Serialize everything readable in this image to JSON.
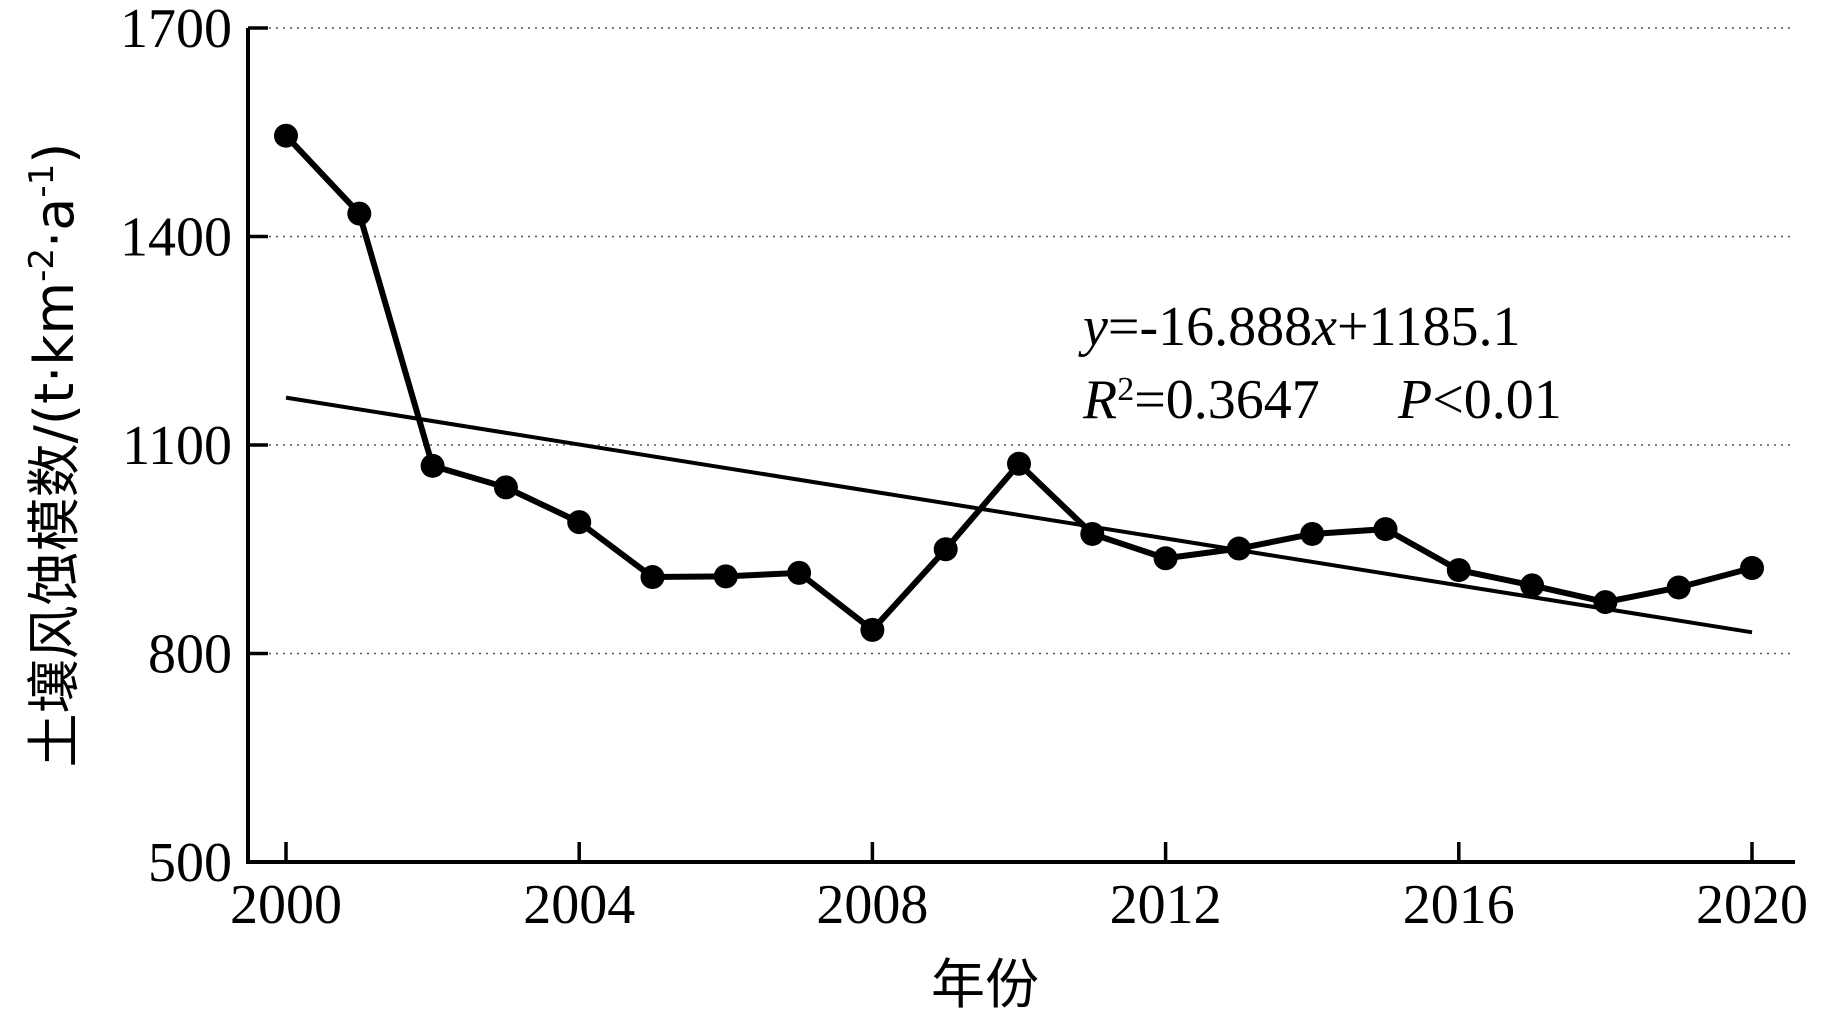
{
  "chart_data": {
    "type": "line",
    "title": "",
    "xlabel": "年份",
    "ylabel": "土壤风蚀模数/(t·km⁻²·a⁻¹)",
    "ylabel_main": "土壤风蚀模数/(t·km",
    "ylabel_sup1": "-2",
    "ylabel_mid": "·a",
    "ylabel_sup2": "-1",
    "ylabel_end": ")",
    "xlim": [
      2000,
      2020
    ],
    "ylim": [
      500,
      1700
    ],
    "x_ticks": [
      "2000",
      "2004",
      "2008",
      "2012",
      "2016",
      "2020"
    ],
    "y_ticks": [
      "500",
      "800",
      "1100",
      "1400",
      "1700"
    ],
    "grid": "horizontal-dotted",
    "x": [
      2000,
      2001,
      2002,
      2003,
      2004,
      2005,
      2006,
      2007,
      2008,
      2009,
      2010,
      2011,
      2012,
      2013,
      2014,
      2015,
      2016,
      2017,
      2018,
      2019,
      2020
    ],
    "series": [
      {
        "values": [
          1545,
          1433,
          1070,
          1039,
          989,
          910,
          911,
          916,
          834,
          950,
          1073,
          972,
          937,
          951,
          972,
          979,
          920,
          898,
          874,
          895,
          923
        ]
      }
    ],
    "trendline": {
      "slope": -16.888,
      "intercept": 1185.1,
      "x_start": 2000,
      "x_end": 2020,
      "y_start": 1168.2,
      "y_end": 830.5
    },
    "annotation": {
      "eq_y": "y",
      "eq_rest1": "=-16.888",
      "eq_x": "x",
      "eq_rest2": "+1185.1",
      "r_label": "R",
      "r_sup": "2",
      "r_value": "=0.3647",
      "p_label": "P",
      "p_value": "<0.01"
    },
    "colors": {
      "line": "#000000",
      "grid": "#555555"
    }
  }
}
